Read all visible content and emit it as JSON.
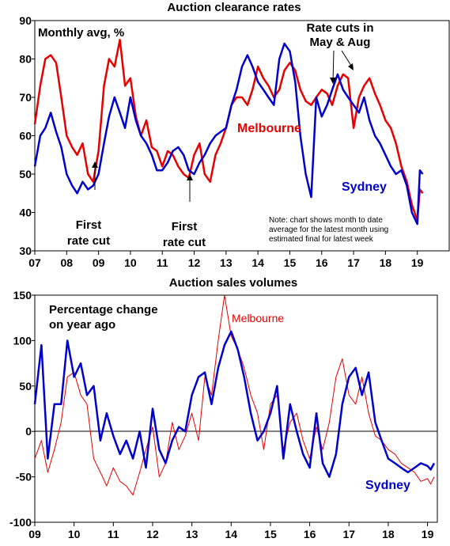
{
  "chart_data": [
    {
      "type": "line",
      "title": "Auction clearance rates",
      "subtitle": "Monthly avg, %",
      "ylim": [
        30,
        90
      ],
      "yticks": [
        "30",
        "40",
        "50",
        "60",
        "70",
        "80",
        "90"
      ],
      "xlim": [
        2007,
        2020.0
      ],
      "xticks": [
        "07",
        "08",
        "09",
        "10",
        "11",
        "12",
        "13",
        "14",
        "15",
        "16",
        "17",
        "18",
        "19"
      ],
      "grid": false,
      "annotations": {
        "first_cut_a_line1": "First",
        "first_cut_a_line2": "rate cut",
        "first_cut_b_line1": "First",
        "first_cut_b_line2": "rate cut",
        "rate_cuts_line1": "Rate cuts in",
        "rate_cuts_line2": "May & Aug",
        "note_line1": "Note: chart shows month to date",
        "note_line2": "average for the latest month using",
        "note_line3": "estimated final for latest week"
      },
      "series": [
        {
          "name": "Melbourne",
          "color": "#e60000",
          "x": [
            2007.0,
            2007.17,
            2007.33,
            2007.5,
            2007.67,
            2007.83,
            2008.0,
            2008.17,
            2008.33,
            2008.5,
            2008.67,
            2008.83,
            2009.0,
            2009.17,
            2009.33,
            2009.5,
            2009.67,
            2009.83,
            2010.0,
            2010.17,
            2010.33,
            2010.5,
            2010.67,
            2010.83,
            2011.0,
            2011.17,
            2011.33,
            2011.5,
            2011.67,
            2011.83,
            2012.0,
            2012.17,
            2012.33,
            2012.5,
            2012.67,
            2012.83,
            2013.0,
            2013.17,
            2013.33,
            2013.5,
            2013.67,
            2013.83,
            2014.0,
            2014.17,
            2014.33,
            2014.5,
            2014.67,
            2014.83,
            2015.0,
            2015.17,
            2015.33,
            2015.5,
            2015.67,
            2015.83,
            2016.0,
            2016.17,
            2016.33,
            2016.5,
            2016.67,
            2016.83,
            2017.0,
            2017.17,
            2017.33,
            2017.5,
            2017.67,
            2017.83,
            2018.0,
            2018.17,
            2018.33,
            2018.5,
            2018.67,
            2018.83,
            2019.0,
            2019.08,
            2019.17
          ],
          "values": [
            63,
            73,
            80,
            81,
            79,
            70,
            60,
            57,
            55,
            58,
            50,
            48,
            56,
            73,
            80,
            78,
            85,
            73,
            75,
            65,
            60,
            64,
            57,
            56,
            52,
            56,
            55,
            52,
            50,
            49,
            55,
            58,
            50,
            48,
            55,
            58,
            62,
            68,
            70,
            70,
            68,
            72,
            78,
            75,
            73,
            70,
            72,
            77,
            79,
            77,
            72,
            69,
            68,
            70,
            72,
            71,
            68,
            73,
            76,
            75,
            62,
            70,
            73,
            75,
            71,
            68,
            64,
            62,
            58,
            52,
            48,
            42,
            38,
            46,
            45
          ]
        },
        {
          "name": "Sydney",
          "color": "#0000cc",
          "x": [
            2007.0,
            2007.17,
            2007.33,
            2007.5,
            2007.67,
            2007.83,
            2008.0,
            2008.17,
            2008.33,
            2008.5,
            2008.67,
            2008.83,
            2009.0,
            2009.17,
            2009.33,
            2009.5,
            2009.67,
            2009.83,
            2010.0,
            2010.17,
            2010.33,
            2010.5,
            2010.67,
            2010.83,
            2011.0,
            2011.17,
            2011.33,
            2011.5,
            2011.67,
            2011.83,
            2012.0,
            2012.17,
            2012.33,
            2012.5,
            2012.67,
            2012.83,
            2013.0,
            2013.17,
            2013.33,
            2013.5,
            2013.67,
            2013.83,
            2014.0,
            2014.17,
            2014.33,
            2014.5,
            2014.67,
            2014.83,
            2015.0,
            2015.17,
            2015.33,
            2015.5,
            2015.67,
            2015.83,
            2016.0,
            2016.17,
            2016.33,
            2016.5,
            2016.67,
            2016.83,
            2017.0,
            2017.17,
            2017.33,
            2017.5,
            2017.67,
            2017.83,
            2018.0,
            2018.17,
            2018.33,
            2018.5,
            2018.67,
            2018.83,
            2019.0,
            2019.08,
            2019.17
          ],
          "values": [
            52,
            60,
            62,
            66,
            61,
            57,
            50,
            47,
            45,
            48,
            46,
            47,
            50,
            58,
            65,
            70,
            66,
            62,
            70,
            64,
            60,
            58,
            55,
            51,
            51,
            53,
            56,
            57,
            55,
            51,
            50,
            53,
            55,
            58,
            60,
            61,
            62,
            68,
            72,
            78,
            81,
            78,
            74,
            72,
            70,
            68,
            80,
            84,
            82,
            74,
            60,
            50,
            44,
            70,
            65,
            68,
            72,
            76,
            72,
            70,
            68,
            66,
            70,
            64,
            60,
            58,
            55,
            52,
            50,
            51,
            47,
            40,
            37,
            51,
            50
          ]
        }
      ]
    },
    {
      "type": "line",
      "title": "Auction sales volumes",
      "subtitle_line1": "Percentage change",
      "subtitle_line2": "on year ago",
      "ylim": [
        -100,
        150
      ],
      "yticks": [
        "-100",
        "-50",
        "0",
        "50",
        "100",
        "150"
      ],
      "xlim": [
        2009,
        2019.25
      ],
      "xticks": [
        "09",
        "10",
        "11",
        "12",
        "13",
        "14",
        "15",
        "16",
        "17",
        "18",
        "19"
      ],
      "grid": false,
      "series": [
        {
          "name": "Melbourne",
          "color": "#e60000",
          "x": [
            2009.0,
            2009.17,
            2009.33,
            2009.5,
            2009.67,
            2009.83,
            2010.0,
            2010.17,
            2010.33,
            2010.5,
            2010.67,
            2010.83,
            2011.0,
            2011.17,
            2011.33,
            2011.5,
            2011.67,
            2011.83,
            2012.0,
            2012.17,
            2012.33,
            2012.5,
            2012.67,
            2012.83,
            2013.0,
            2013.17,
            2013.33,
            2013.5,
            2013.67,
            2013.83,
            2014.0,
            2014.17,
            2014.33,
            2014.5,
            2014.67,
            2014.83,
            2015.0,
            2015.17,
            2015.33,
            2015.5,
            2015.67,
            2015.83,
            2016.0,
            2016.17,
            2016.33,
            2016.5,
            2016.67,
            2016.83,
            2017.0,
            2017.17,
            2017.33,
            2017.5,
            2017.67,
            2017.83,
            2018.0,
            2018.17,
            2018.33,
            2018.5,
            2018.67,
            2018.83,
            2019.0,
            2019.08,
            2019.17
          ],
          "values": [
            -30,
            -10,
            -45,
            -20,
            10,
            60,
            65,
            40,
            30,
            -30,
            -45,
            -60,
            -40,
            -55,
            -60,
            -70,
            -45,
            -20,
            5,
            -50,
            -35,
            10,
            -20,
            -5,
            20,
            -10,
            60,
            40,
            100,
            150,
            105,
            90,
            70,
            40,
            20,
            -20,
            30,
            40,
            -20,
            10,
            20,
            -10,
            -30,
            5,
            -20,
            10,
            60,
            80,
            40,
            30,
            60,
            20,
            -5,
            -10,
            -20,
            -25,
            -35,
            -40,
            -45,
            -55,
            -52,
            -58,
            -50
          ]
        },
        {
          "name": "Sydney",
          "color": "#0000cc",
          "x": [
            2009.0,
            2009.17,
            2009.33,
            2009.5,
            2009.67,
            2009.83,
            2010.0,
            2010.17,
            2010.33,
            2010.5,
            2010.67,
            2010.83,
            2011.0,
            2011.17,
            2011.33,
            2011.5,
            2011.67,
            2011.83,
            2012.0,
            2012.17,
            2012.33,
            2012.5,
            2012.67,
            2012.83,
            2013.0,
            2013.17,
            2013.33,
            2013.5,
            2013.67,
            2013.83,
            2014.0,
            2014.17,
            2014.33,
            2014.5,
            2014.67,
            2014.83,
            2015.0,
            2015.17,
            2015.33,
            2015.5,
            2015.67,
            2015.83,
            2016.0,
            2016.17,
            2016.33,
            2016.5,
            2016.67,
            2016.83,
            2017.0,
            2017.17,
            2017.33,
            2017.5,
            2017.67,
            2017.83,
            2018.0,
            2018.17,
            2018.33,
            2018.5,
            2018.67,
            2018.83,
            2019.0,
            2019.08,
            2019.17
          ],
          "values": [
            30,
            95,
            -30,
            30,
            30,
            100,
            60,
            75,
            40,
            50,
            -10,
            20,
            -5,
            -25,
            -10,
            -30,
            0,
            -40,
            25,
            -20,
            -35,
            -10,
            5,
            0,
            40,
            60,
            65,
            30,
            70,
            95,
            110,
            90,
            60,
            20,
            -10,
            0,
            20,
            50,
            -30,
            30,
            0,
            -25,
            -40,
            20,
            -35,
            -50,
            -25,
            30,
            60,
            70,
            40,
            65,
            10,
            -10,
            -30,
            -35,
            -40,
            -45,
            -40,
            -35,
            -38,
            -42,
            -35
          ]
        }
      ]
    }
  ]
}
